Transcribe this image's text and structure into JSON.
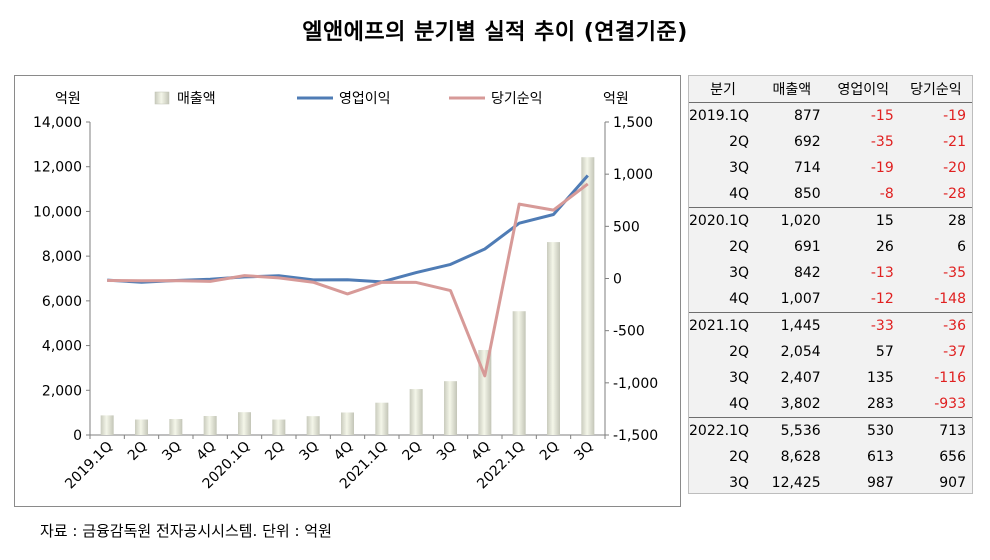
{
  "title": "엘앤에프의 분기별 실적 추이 (연결기준)",
  "source": "자료 : 금융감독원 전자공시시스템. 단위 : 억원",
  "colors": {
    "revenue_light": "#f4f6e9",
    "revenue_dark": "#c9cbbd",
    "operating": "#4f7cb5",
    "net": "#d79a98",
    "negative": "#e02020"
  },
  "chart_data": {
    "type": "bar",
    "categories": [
      "2019.1Q",
      "2Q",
      "3Q",
      "4Q",
      "2020.1Q",
      "2Q",
      "3Q",
      "4Q",
      "2021.1Q",
      "2Q",
      "3Q",
      "4Q",
      "2022.1Q",
      "2Q",
      "3Q"
    ],
    "series": [
      {
        "name": "매출액",
        "type": "bar",
        "axis": "left",
        "values": [
          877,
          692,
          714,
          850,
          1020,
          691,
          842,
          1007,
          1445,
          2054,
          2407,
          3802,
          5536,
          8628,
          12425
        ]
      },
      {
        "name": "영업이익",
        "type": "line",
        "axis": "right",
        "values": [
          -15,
          -35,
          -19,
          -8,
          15,
          26,
          -13,
          -12,
          -33,
          57,
          135,
          283,
          530,
          613,
          987
        ]
      },
      {
        "name": "당기순익",
        "type": "line",
        "axis": "right",
        "values": [
          -19,
          -21,
          -20,
          -28,
          28,
          6,
          -35,
          -148,
          -36,
          -37,
          -116,
          -933,
          713,
          656,
          907
        ]
      }
    ],
    "left_axis": {
      "unit": "억원",
      "ylim": [
        0,
        14000
      ],
      "ticks": [
        "0",
        "2,000",
        "4,000",
        "6,000",
        "8,000",
        "10,000",
        "12,000",
        "14,000"
      ]
    },
    "right_axis": {
      "unit": "억원",
      "ylim": [
        -1500,
        1500
      ],
      "ticks": [
        "-1,500",
        "-1,000",
        "-500",
        "0",
        "500",
        "1,000",
        "1,500"
      ]
    },
    "legend_position": "top",
    "grid": false
  },
  "table": {
    "headers": [
      "분기",
      "매출액",
      "영업이익",
      "당기순익"
    ],
    "rows": [
      [
        "2019.1Q",
        "877",
        "-15",
        "-19"
      ],
      [
        "2Q",
        "692",
        "-35",
        "-21"
      ],
      [
        "3Q",
        "714",
        "-19",
        "-20"
      ],
      [
        "4Q",
        "850",
        "-8",
        "-28"
      ],
      [
        "2020.1Q",
        "1,020",
        "15",
        "28"
      ],
      [
        "2Q",
        "691",
        "26",
        "6"
      ],
      [
        "3Q",
        "842",
        "-13",
        "-35"
      ],
      [
        "4Q",
        "1,007",
        "-12",
        "-148"
      ],
      [
        "2021.1Q",
        "1,445",
        "-33",
        "-36"
      ],
      [
        "2Q",
        "2,054",
        "57",
        "-37"
      ],
      [
        "3Q",
        "2,407",
        "135",
        "-116"
      ],
      [
        "4Q",
        "3,802",
        "283",
        "-933"
      ],
      [
        "2022.1Q",
        "5,536",
        "530",
        "713"
      ],
      [
        "2Q",
        "8,628",
        "613",
        "656"
      ],
      [
        "3Q",
        "12,425",
        "987",
        "907"
      ]
    ]
  }
}
